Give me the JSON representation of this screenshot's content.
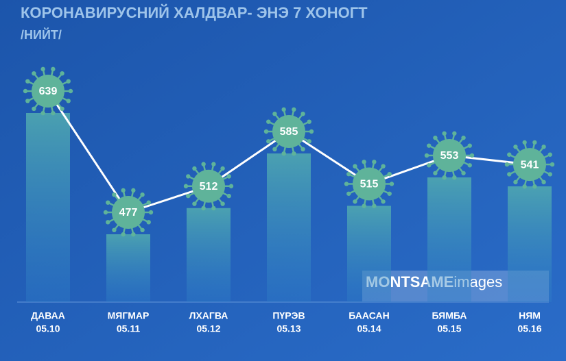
{
  "chart_data": {
    "type": "bar-line",
    "title": "КОРОНАВИРУСНИЙ ХАЛДВАР- ЭНЭ 7 ХОНОГТ",
    "subtitle": "/НИЙТ/",
    "categories": [
      "ДАВАА",
      "МЯГМАР",
      "ЛХАГВА",
      "ПҮРЭВ",
      "БААСАН",
      "БЯМБА",
      "НЯМ"
    ],
    "dates": [
      "05.10",
      "05.11",
      "05.12",
      "05.13",
      "05.14",
      "05.15",
      "05.16"
    ],
    "values": [
      639,
      477,
      512,
      585,
      515,
      553,
      541
    ],
    "color": "#5fb39a"
  },
  "watermark": {
    "brand": "MONTSAME",
    "suffix": "images"
  }
}
